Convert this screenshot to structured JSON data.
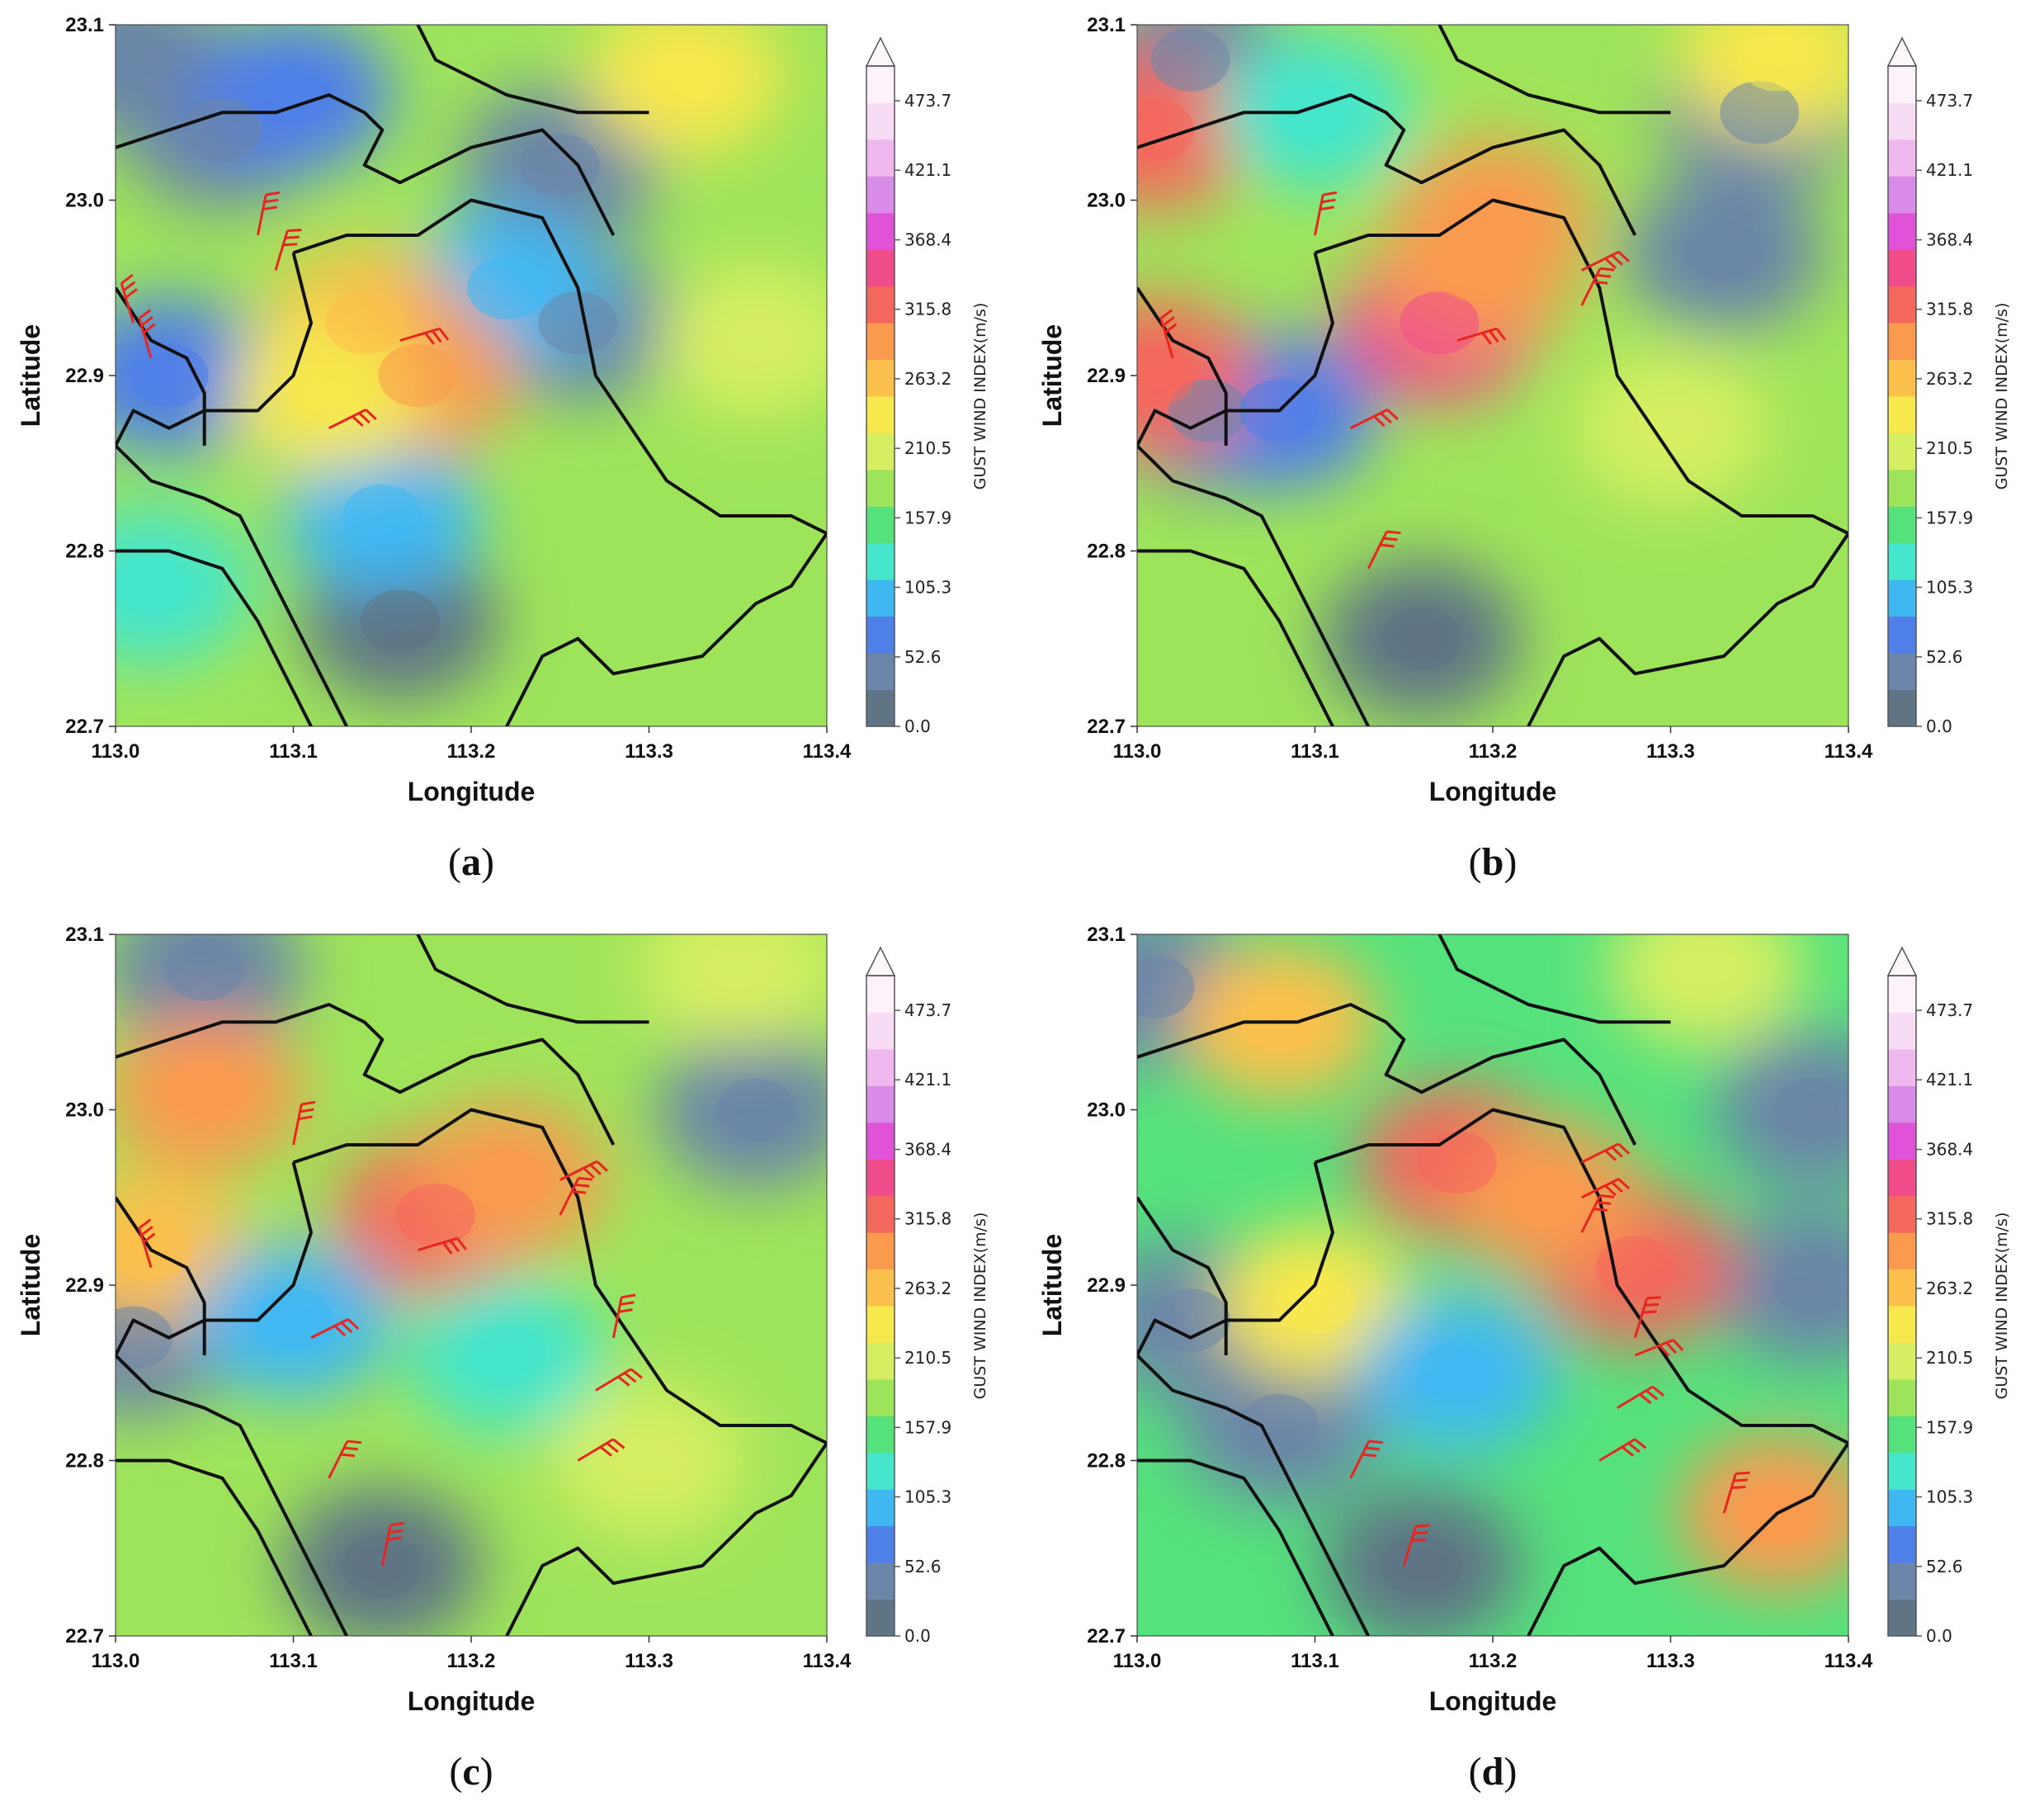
{
  "chart_data": [
    {
      "type": "heatmap",
      "panel_label": "a",
      "xlabel": "Longitude",
      "ylabel": "Latitude",
      "colorbar_label": "GUST WIND INDEX(m/s)",
      "xlim": [
        113.0,
        113.4
      ],
      "ylim": [
        22.7,
        23.1
      ],
      "xticks": [
        "113.0",
        "113.1",
        "113.2",
        "113.3",
        "113.4"
      ],
      "yticks": [
        "22.7",
        "22.8",
        "22.9",
        "23.0",
        "23.1"
      ],
      "colorbar_ticks": [
        "0.0",
        "52.6",
        "105.3",
        "157.9",
        "210.5",
        "263.2",
        "315.8",
        "368.4",
        "421.1",
        "473.7"
      ],
      "background_value": 180,
      "field": [
        {
          "lon": 113.01,
          "lat": 23.08,
          "value": 40
        },
        {
          "lon": 113.06,
          "lat": 23.04,
          "value": 30
        },
        {
          "lon": 113.1,
          "lat": 23.06,
          "value": 60
        },
        {
          "lon": 113.25,
          "lat": 23.02,
          "value": 30
        },
        {
          "lon": 113.26,
          "lat": 22.93,
          "value": 40
        },
        {
          "lon": 113.22,
          "lat": 22.95,
          "value": 90
        },
        {
          "lon": 113.03,
          "lat": 22.9,
          "value": 60
        },
        {
          "lon": 113.16,
          "lat": 22.76,
          "value": 20
        },
        {
          "lon": 113.15,
          "lat": 22.82,
          "value": 100
        },
        {
          "lon": 113.14,
          "lat": 22.93,
          "value": 270
        },
        {
          "lon": 113.17,
          "lat": 22.9,
          "value": 290
        },
        {
          "lon": 113.12,
          "lat": 22.89,
          "value": 240
        },
        {
          "lon": 113.32,
          "lat": 23.07,
          "value": 230
        },
        {
          "lon": 113.36,
          "lat": 22.92,
          "value": 210
        },
        {
          "lon": 113.02,
          "lat": 22.78,
          "value": 120
        }
      ],
      "wind_barbs": [
        {
          "lon": 113.08,
          "lat": 22.98,
          "u": 0.2,
          "v": 1
        },
        {
          "lon": 113.09,
          "lat": 22.96,
          "u": 0.3,
          "v": 1
        },
        {
          "lon": 113.16,
          "lat": 22.92,
          "u": 1,
          "v": 0.3
        },
        {
          "lon": 113.12,
          "lat": 22.87,
          "u": 1,
          "v": 0.5
        },
        {
          "lon": 113.01,
          "lat": 22.93,
          "u": -0.3,
          "v": 1
        },
        {
          "lon": 113.02,
          "lat": 22.91,
          "u": -0.3,
          "v": 1
        }
      ]
    },
    {
      "type": "heatmap",
      "panel_label": "b",
      "xlabel": "Longitude",
      "ylabel": "Latitude",
      "colorbar_label": "GUST WIND INDEX(m/s)",
      "xlim": [
        113.0,
        113.4
      ],
      "ylim": [
        22.7,
        23.1
      ],
      "xticks": [
        "113.0",
        "113.1",
        "113.2",
        "113.3",
        "113.4"
      ],
      "yticks": [
        "22.7",
        "22.8",
        "22.9",
        "23.0",
        "23.1"
      ],
      "colorbar_ticks": [
        "0.0",
        "52.6",
        "105.3",
        "157.9",
        "210.5",
        "263.2",
        "315.8",
        "368.4",
        "421.1",
        "473.7"
      ],
      "background_value": 180,
      "field": [
        {
          "lon": 113.03,
          "lat": 23.08,
          "value": 30
        },
        {
          "lon": 113.33,
          "lat": 22.97,
          "value": 30
        },
        {
          "lon": 113.35,
          "lat": 23.05,
          "value": 40
        },
        {
          "lon": 113.16,
          "lat": 22.75,
          "value": 20
        },
        {
          "lon": 113.04,
          "lat": 22.88,
          "value": 40
        },
        {
          "lon": 113.08,
          "lat": 22.88,
          "value": 80
        },
        {
          "lon": 113.17,
          "lat": 22.93,
          "value": 340
        },
        {
          "lon": 113.19,
          "lat": 22.96,
          "value": 300
        },
        {
          "lon": 113.2,
          "lat": 22.99,
          "value": 290
        },
        {
          "lon": 113.01,
          "lat": 23.04,
          "value": 320
        },
        {
          "lon": 113.01,
          "lat": 22.9,
          "value": 330
        },
        {
          "lon": 113.36,
          "lat": 23.08,
          "value": 230
        },
        {
          "lon": 113.3,
          "lat": 22.87,
          "value": 220
        },
        {
          "lon": 113.1,
          "lat": 23.05,
          "value": 130
        }
      ],
      "wind_barbs": [
        {
          "lon": 113.1,
          "lat": 22.98,
          "u": 0.2,
          "v": 1
        },
        {
          "lon": 113.18,
          "lat": 22.92,
          "u": 1,
          "v": 0.3
        },
        {
          "lon": 113.25,
          "lat": 22.96,
          "u": 1,
          "v": 0.5
        },
        {
          "lon": 113.25,
          "lat": 22.94,
          "u": 0.5,
          "v": 1
        },
        {
          "lon": 113.12,
          "lat": 22.87,
          "u": 1,
          "v": 0.5
        },
        {
          "lon": 113.13,
          "lat": 22.79,
          "u": 0.5,
          "v": 1
        },
        {
          "lon": 113.02,
          "lat": 22.91,
          "u": -0.3,
          "v": 1
        }
      ]
    },
    {
      "type": "heatmap",
      "panel_label": "c",
      "xlabel": "Longitude",
      "ylabel": "Latitude",
      "colorbar_label": "GUST WIND INDEX(m/s)",
      "xlim": [
        113.0,
        113.4
      ],
      "ylim": [
        22.7,
        23.1
      ],
      "xticks": [
        "113.0",
        "113.1",
        "113.2",
        "113.3",
        "113.4"
      ],
      "yticks": [
        "22.7",
        "22.8",
        "22.9",
        "23.0",
        "23.1"
      ],
      "colorbar_ticks": [
        "0.0",
        "52.6",
        "105.3",
        "157.9",
        "210.5",
        "263.2",
        "315.8",
        "368.4",
        "421.1",
        "473.7"
      ],
      "background_value": 185,
      "field": [
        {
          "lon": 113.05,
          "lat": 23.08,
          "value": 40
        },
        {
          "lon": 113.36,
          "lat": 23.0,
          "value": 30
        },
        {
          "lon": 113.15,
          "lat": 22.74,
          "value": 20
        },
        {
          "lon": 113.01,
          "lat": 22.87,
          "value": 40
        },
        {
          "lon": 113.18,
          "lat": 22.94,
          "value": 310
        },
        {
          "lon": 113.22,
          "lat": 22.96,
          "value": 290
        },
        {
          "lon": 113.05,
          "lat": 23.01,
          "value": 280
        },
        {
          "lon": 113.02,
          "lat": 22.92,
          "value": 260
        },
        {
          "lon": 113.22,
          "lat": 22.86,
          "value": 120
        },
        {
          "lon": 113.1,
          "lat": 22.88,
          "value": 110
        },
        {
          "lon": 113.35,
          "lat": 23.08,
          "value": 220
        },
        {
          "lon": 113.3,
          "lat": 22.8,
          "value": 200
        }
      ],
      "wind_barbs": [
        {
          "lon": 113.1,
          "lat": 22.98,
          "u": 0.2,
          "v": 1
        },
        {
          "lon": 113.17,
          "lat": 22.92,
          "u": 1,
          "v": 0.3
        },
        {
          "lon": 113.25,
          "lat": 22.96,
          "u": 1,
          "v": 0.5
        },
        {
          "lon": 113.25,
          "lat": 22.94,
          "u": 0.5,
          "v": 1
        },
        {
          "lon": 113.02,
          "lat": 22.91,
          "u": -0.3,
          "v": 1
        },
        {
          "lon": 113.11,
          "lat": 22.87,
          "u": 1,
          "v": 0.5
        },
        {
          "lon": 113.28,
          "lat": 22.87,
          "u": 0.2,
          "v": 1
        },
        {
          "lon": 113.27,
          "lat": 22.84,
          "u": 1,
          "v": 0.6
        },
        {
          "lon": 113.26,
          "lat": 22.8,
          "u": 1,
          "v": 0.6
        },
        {
          "lon": 113.12,
          "lat": 22.79,
          "u": 0.5,
          "v": 1
        },
        {
          "lon": 113.15,
          "lat": 22.74,
          "u": 0.2,
          "v": 1
        }
      ]
    },
    {
      "type": "heatmap",
      "panel_label": "d",
      "xlabel": "Longitude",
      "ylabel": "Latitude",
      "colorbar_label": "GUST WIND INDEX(m/s)",
      "xlim": [
        113.0,
        113.4
      ],
      "ylim": [
        22.7,
        23.1
      ],
      "xticks": [
        "113.0",
        "113.1",
        "113.2",
        "113.3",
        "113.4"
      ],
      "yticks": [
        "22.7",
        "22.8",
        "22.9",
        "23.0",
        "23.1"
      ],
      "colorbar_ticks": [
        "0.0",
        "52.6",
        "105.3",
        "157.9",
        "210.5",
        "263.2",
        "315.8",
        "368.4",
        "421.1",
        "473.7"
      ],
      "background_value": 150,
      "field": [
        {
          "lon": 113.01,
          "lat": 23.07,
          "value": 40
        },
        {
          "lon": 113.03,
          "lat": 22.88,
          "value": 30
        },
        {
          "lon": 113.08,
          "lat": 22.82,
          "value": 50
        },
        {
          "lon": 113.16,
          "lat": 22.74,
          "value": 20
        },
        {
          "lon": 113.38,
          "lat": 22.9,
          "value": 30
        },
        {
          "lon": 113.38,
          "lat": 23.0,
          "value": 50
        },
        {
          "lon": 113.18,
          "lat": 22.97,
          "value": 320
        },
        {
          "lon": 113.28,
          "lat": 22.91,
          "value": 320
        },
        {
          "lon": 113.23,
          "lat": 22.95,
          "value": 280
        },
        {
          "lon": 113.36,
          "lat": 22.77,
          "value": 280
        },
        {
          "lon": 113.08,
          "lat": 23.05,
          "value": 250
        },
        {
          "lon": 113.1,
          "lat": 22.89,
          "value": 240
        },
        {
          "lon": 113.32,
          "lat": 23.08,
          "value": 220
        },
        {
          "lon": 113.18,
          "lat": 22.85,
          "value": 90
        }
      ],
      "wind_barbs": [
        {
          "lon": 113.25,
          "lat": 22.97,
          "u": 1,
          "v": 0.5
        },
        {
          "lon": 113.25,
          "lat": 22.95,
          "u": 1,
          "v": 0.5
        },
        {
          "lon": 113.25,
          "lat": 22.93,
          "u": 0.5,
          "v": 1
        },
        {
          "lon": 113.28,
          "lat": 22.87,
          "u": 0.3,
          "v": 1
        },
        {
          "lon": 113.28,
          "lat": 22.86,
          "u": 1,
          "v": 0.4
        },
        {
          "lon": 113.27,
          "lat": 22.83,
          "u": 1,
          "v": 0.6
        },
        {
          "lon": 113.26,
          "lat": 22.8,
          "u": 1,
          "v": 0.6
        },
        {
          "lon": 113.12,
          "lat": 22.79,
          "u": 0.5,
          "v": 1
        },
        {
          "lon": 113.15,
          "lat": 22.74,
          "u": 0.3,
          "v": 1
        },
        {
          "lon": 113.33,
          "lat": 22.77,
          "u": 0.3,
          "v": 1
        }
      ]
    }
  ],
  "colors": {
    "levels": [
      "#5f7485",
      "#6b86a8",
      "#4f7fe8",
      "#3fb8f2",
      "#45e6cc",
      "#55e27c",
      "#9ee45a",
      "#d6ef62",
      "#f7e84e",
      "#fbc04c",
      "#f99a4f",
      "#f4675d",
      "#f04c8a",
      "#e052d8",
      "#d98be8",
      "#efb9ef",
      "#f8dcf4",
      "#fdf1fa"
    ],
    "boundary": "#111111",
    "barb": "#e8251f"
  }
}
